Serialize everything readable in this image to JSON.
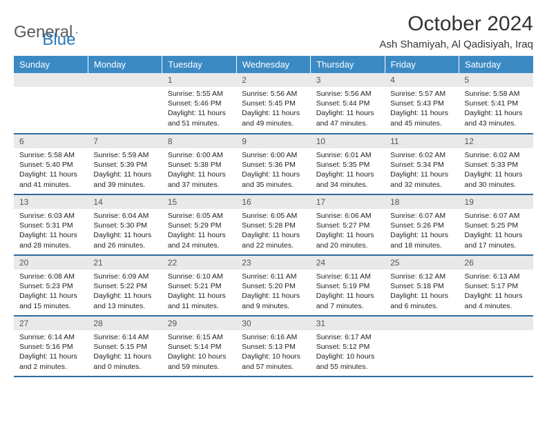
{
  "logo": {
    "text1": "General",
    "text2": "Blue"
  },
  "title": "October 2024",
  "location": "Ash Shamiyah, Al Qadisiyah, Iraq",
  "colors": {
    "header_bg": "#3b8ac4",
    "header_text": "#ffffff",
    "daynum_bg": "#e9e9e9",
    "row_border": "#2a6a9e",
    "logo_gray": "#5a5a5a",
    "logo_blue": "#2a7ab8"
  },
  "weekdays": [
    "Sunday",
    "Monday",
    "Tuesday",
    "Wednesday",
    "Thursday",
    "Friday",
    "Saturday"
  ],
  "weeks": [
    [
      null,
      null,
      {
        "n": "1",
        "sunrise": "5:55 AM",
        "sunset": "5:46 PM",
        "dl": "11 hours and 51 minutes."
      },
      {
        "n": "2",
        "sunrise": "5:56 AM",
        "sunset": "5:45 PM",
        "dl": "11 hours and 49 minutes."
      },
      {
        "n": "3",
        "sunrise": "5:56 AM",
        "sunset": "5:44 PM",
        "dl": "11 hours and 47 minutes."
      },
      {
        "n": "4",
        "sunrise": "5:57 AM",
        "sunset": "5:43 PM",
        "dl": "11 hours and 45 minutes."
      },
      {
        "n": "5",
        "sunrise": "5:58 AM",
        "sunset": "5:41 PM",
        "dl": "11 hours and 43 minutes."
      }
    ],
    [
      {
        "n": "6",
        "sunrise": "5:58 AM",
        "sunset": "5:40 PM",
        "dl": "11 hours and 41 minutes."
      },
      {
        "n": "7",
        "sunrise": "5:59 AM",
        "sunset": "5:39 PM",
        "dl": "11 hours and 39 minutes."
      },
      {
        "n": "8",
        "sunrise": "6:00 AM",
        "sunset": "5:38 PM",
        "dl": "11 hours and 37 minutes."
      },
      {
        "n": "9",
        "sunrise": "6:00 AM",
        "sunset": "5:36 PM",
        "dl": "11 hours and 35 minutes."
      },
      {
        "n": "10",
        "sunrise": "6:01 AM",
        "sunset": "5:35 PM",
        "dl": "11 hours and 34 minutes."
      },
      {
        "n": "11",
        "sunrise": "6:02 AM",
        "sunset": "5:34 PM",
        "dl": "11 hours and 32 minutes."
      },
      {
        "n": "12",
        "sunrise": "6:02 AM",
        "sunset": "5:33 PM",
        "dl": "11 hours and 30 minutes."
      }
    ],
    [
      {
        "n": "13",
        "sunrise": "6:03 AM",
        "sunset": "5:31 PM",
        "dl": "11 hours and 28 minutes."
      },
      {
        "n": "14",
        "sunrise": "6:04 AM",
        "sunset": "5:30 PM",
        "dl": "11 hours and 26 minutes."
      },
      {
        "n": "15",
        "sunrise": "6:05 AM",
        "sunset": "5:29 PM",
        "dl": "11 hours and 24 minutes."
      },
      {
        "n": "16",
        "sunrise": "6:05 AM",
        "sunset": "5:28 PM",
        "dl": "11 hours and 22 minutes."
      },
      {
        "n": "17",
        "sunrise": "6:06 AM",
        "sunset": "5:27 PM",
        "dl": "11 hours and 20 minutes."
      },
      {
        "n": "18",
        "sunrise": "6:07 AM",
        "sunset": "5:26 PM",
        "dl": "11 hours and 18 minutes."
      },
      {
        "n": "19",
        "sunrise": "6:07 AM",
        "sunset": "5:25 PM",
        "dl": "11 hours and 17 minutes."
      }
    ],
    [
      {
        "n": "20",
        "sunrise": "6:08 AM",
        "sunset": "5:23 PM",
        "dl": "11 hours and 15 minutes."
      },
      {
        "n": "21",
        "sunrise": "6:09 AM",
        "sunset": "5:22 PM",
        "dl": "11 hours and 13 minutes."
      },
      {
        "n": "22",
        "sunrise": "6:10 AM",
        "sunset": "5:21 PM",
        "dl": "11 hours and 11 minutes."
      },
      {
        "n": "23",
        "sunrise": "6:11 AM",
        "sunset": "5:20 PM",
        "dl": "11 hours and 9 minutes."
      },
      {
        "n": "24",
        "sunrise": "6:11 AM",
        "sunset": "5:19 PM",
        "dl": "11 hours and 7 minutes."
      },
      {
        "n": "25",
        "sunrise": "6:12 AM",
        "sunset": "5:18 PM",
        "dl": "11 hours and 6 minutes."
      },
      {
        "n": "26",
        "sunrise": "6:13 AM",
        "sunset": "5:17 PM",
        "dl": "11 hours and 4 minutes."
      }
    ],
    [
      {
        "n": "27",
        "sunrise": "6:14 AM",
        "sunset": "5:16 PM",
        "dl": "11 hours and 2 minutes."
      },
      {
        "n": "28",
        "sunrise": "6:14 AM",
        "sunset": "5:15 PM",
        "dl": "11 hours and 0 minutes."
      },
      {
        "n": "29",
        "sunrise": "6:15 AM",
        "sunset": "5:14 PM",
        "dl": "10 hours and 59 minutes."
      },
      {
        "n": "30",
        "sunrise": "6:16 AM",
        "sunset": "5:13 PM",
        "dl": "10 hours and 57 minutes."
      },
      {
        "n": "31",
        "sunrise": "6:17 AM",
        "sunset": "5:12 PM",
        "dl": "10 hours and 55 minutes."
      },
      null,
      null
    ]
  ]
}
